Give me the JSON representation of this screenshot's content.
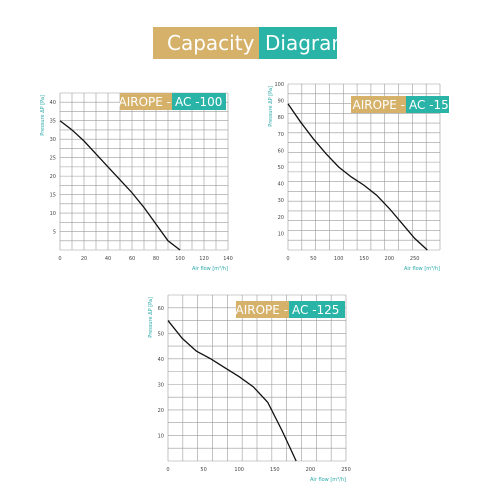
{
  "header": {
    "word1": "Capacity",
    "word2": "Diagram",
    "color1": "#d6b169",
    "color2": "#2ab3a7"
  },
  "chart_data": [
    {
      "type": "line",
      "badge_brand": "AIROPE - ",
      "badge_model": "AC -100",
      "xlabel": "Air flow [m³/h]",
      "ylabel": "Pressure ΔP [Pa]",
      "xlim": [
        0,
        140
      ],
      "ylim": [
        0,
        42.5
      ],
      "xticks": [
        0,
        20,
        40,
        60,
        80,
        100,
        120,
        140
      ],
      "yticks": [
        5,
        10,
        15,
        20,
        25,
        30,
        35,
        40
      ],
      "grid": true,
      "series": [
        {
          "x": [
            0,
            10,
            20,
            30,
            40,
            50,
            60,
            70,
            80,
            90,
            100
          ],
          "y": [
            35,
            32.5,
            29.5,
            26,
            22.5,
            19,
            15.5,
            11.5,
            7,
            2.5,
            0
          ]
        }
      ]
    },
    {
      "type": "line",
      "badge_brand": "AIROPE - ",
      "badge_model": "AC -150",
      "xlabel": "Air flow [m³/h]",
      "ylabel": "Pressure ΔP [Pa]",
      "xlim": [
        0,
        300
      ],
      "ylim": [
        0,
        100
      ],
      "xticks": [
        0,
        50,
        100,
        150,
        200,
        250
      ],
      "yticks": [
        10,
        20,
        30,
        40,
        50,
        60,
        70,
        80,
        90,
        100
      ],
      "grid": true,
      "series": [
        {
          "x": [
            0,
            25,
            50,
            75,
            100,
            125,
            150,
            175,
            200,
            225,
            250,
            275
          ],
          "y": [
            88,
            77,
            67,
            58,
            50,
            44,
            39,
            33,
            25,
            16,
            7,
            0
          ]
        }
      ]
    },
    {
      "type": "line",
      "badge_brand": "AIROPE - ",
      "badge_model": "AC -125",
      "xlabel": "Air flow [m³/h]",
      "ylabel": "Pressure ΔP [Pa]",
      "xlim": [
        0,
        250
      ],
      "ylim": [
        0,
        65
      ],
      "xticks": [
        0,
        50,
        100,
        150,
        200,
        250
      ],
      "yticks": [
        10,
        20,
        30,
        40,
        50,
        60
      ],
      "grid": true,
      "series": [
        {
          "x": [
            0,
            20,
            40,
            60,
            80,
            100,
            120,
            140,
            160,
            180
          ],
          "y": [
            55,
            48,
            43,
            40,
            36.5,
            33,
            29,
            23,
            12,
            0
          ]
        }
      ]
    }
  ]
}
